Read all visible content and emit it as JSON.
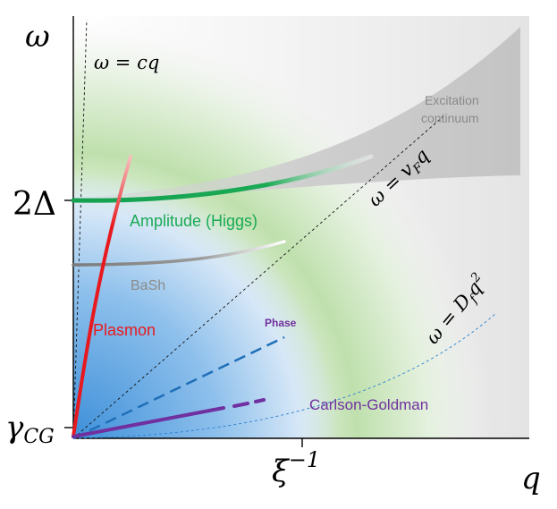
{
  "axes": {
    "y_symbol": "ω",
    "x_symbol": "q",
    "y_tick_2delta": "2Δ",
    "y_tick_gamma": "γ",
    "y_tick_gamma_sub": "CG",
    "x_tick_xi": "ξ",
    "x_tick_xi_sup": "−1"
  },
  "lines": {
    "light": "ω = cq",
    "fermi_w": "ω = ",
    "fermi_v": "v",
    "fermi_sub": "F",
    "fermi_q": "q",
    "diffusive_w": "ω = ",
    "diffusive_D": "D",
    "diffusive_sub": "f",
    "diffusive_q": "q",
    "diffusive_sup": "2"
  },
  "modes": {
    "continuum_line1": "Excitation",
    "continuum_line2": "continuum",
    "amplitude": "Amplitude (Higgs)",
    "bash": "BaSh",
    "plasmon": "Plasmon",
    "phase": "Phase",
    "carlson_goldman": "Carlson-Goldman"
  },
  "colors": {
    "amplitude": "#1aaa55",
    "bash": "#8a8a8a",
    "plasmon": "#e8191e",
    "phase": "#1f6fb8",
    "carlson_goldman": "#7030a0",
    "continuum": "#bdbdbd"
  }
}
